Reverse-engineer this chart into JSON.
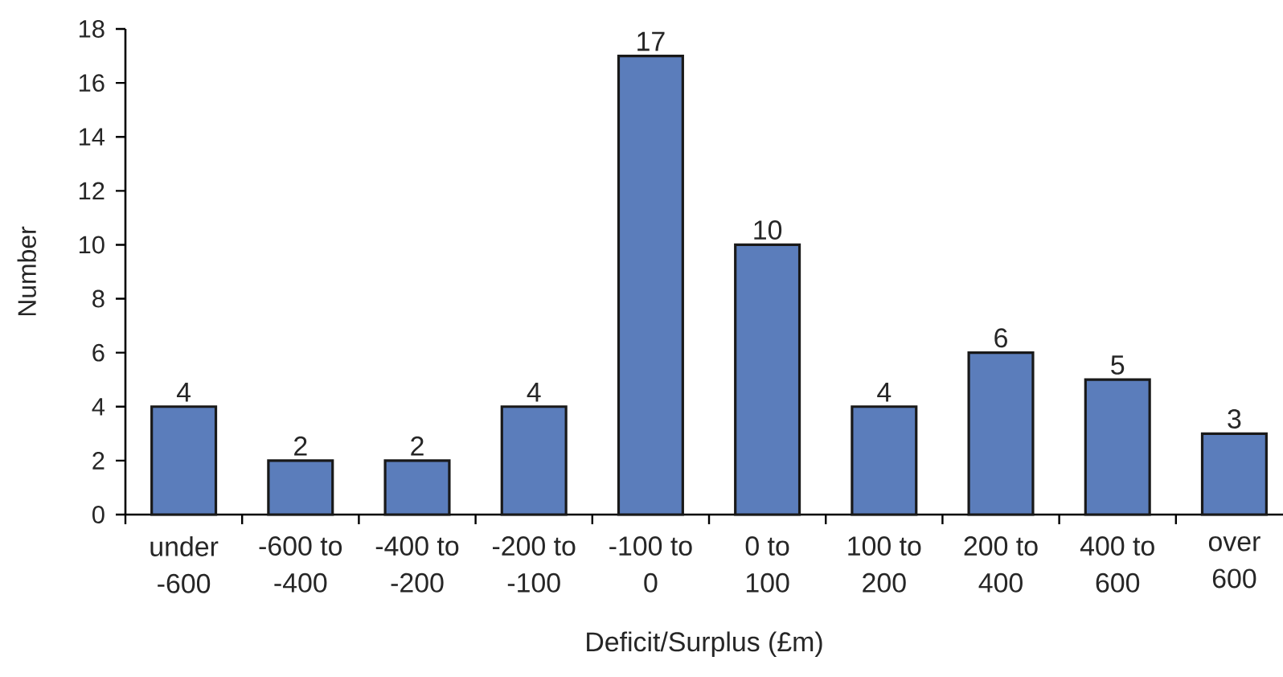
{
  "chart_data": {
    "type": "bar",
    "xlabel": "Deficit/Surplus (£m)",
    "ylabel": "Number",
    "categories": [
      "under -600",
      "-600 to -400",
      "-400 to -200",
      "-200 to -100",
      "-100 to 0",
      "0 to 100",
      "100 to 200",
      "200 to 400",
      "400 to 600",
      "over 600"
    ],
    "values": [
      4,
      2,
      2,
      4,
      17,
      10,
      4,
      6,
      5,
      3
    ],
    "color": "#5b7dbb",
    "ylim": [
      0,
      18
    ],
    "yticks": [
      0,
      2,
      4,
      6,
      8,
      10,
      12,
      14,
      16,
      18
    ],
    "data_labels": true
  }
}
